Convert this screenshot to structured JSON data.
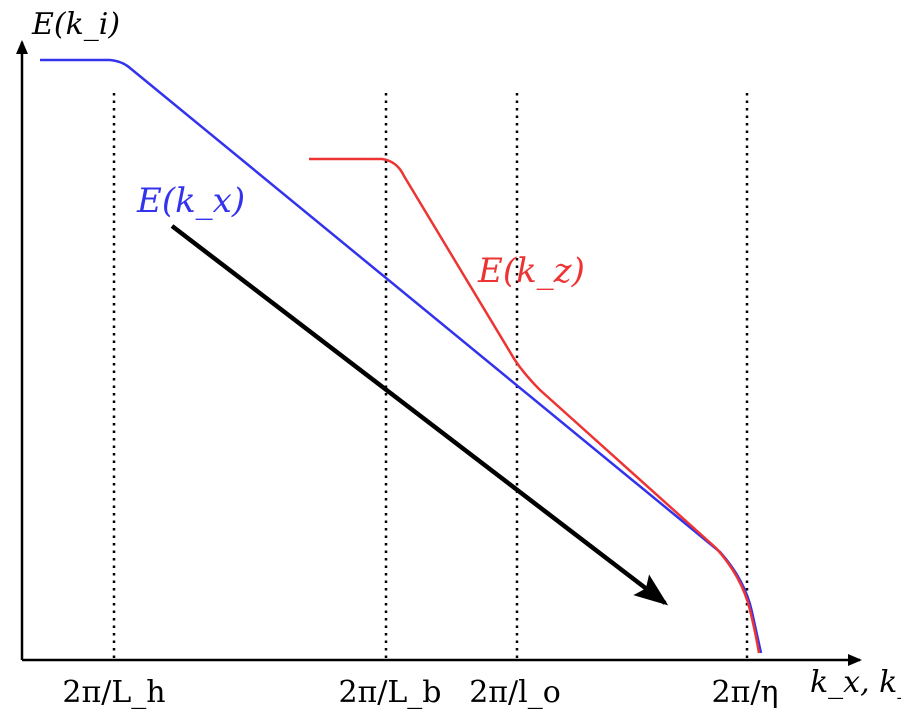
{
  "diagram": {
    "y_axis_label": "E(k_i)",
    "x_axis_label": "k_x, k_z",
    "markers": [
      {
        "label": "2π/L_h"
      },
      {
        "label": "2π/L_b"
      },
      {
        "label": "2π/l_o"
      },
      {
        "label": "2π/η"
      }
    ],
    "curves": [
      {
        "label": "E(k_x)",
        "color": "#3333ee"
      },
      {
        "label": "E(k_z)",
        "color": "#ee3333"
      }
    ],
    "arrow_color": "#000000"
  }
}
